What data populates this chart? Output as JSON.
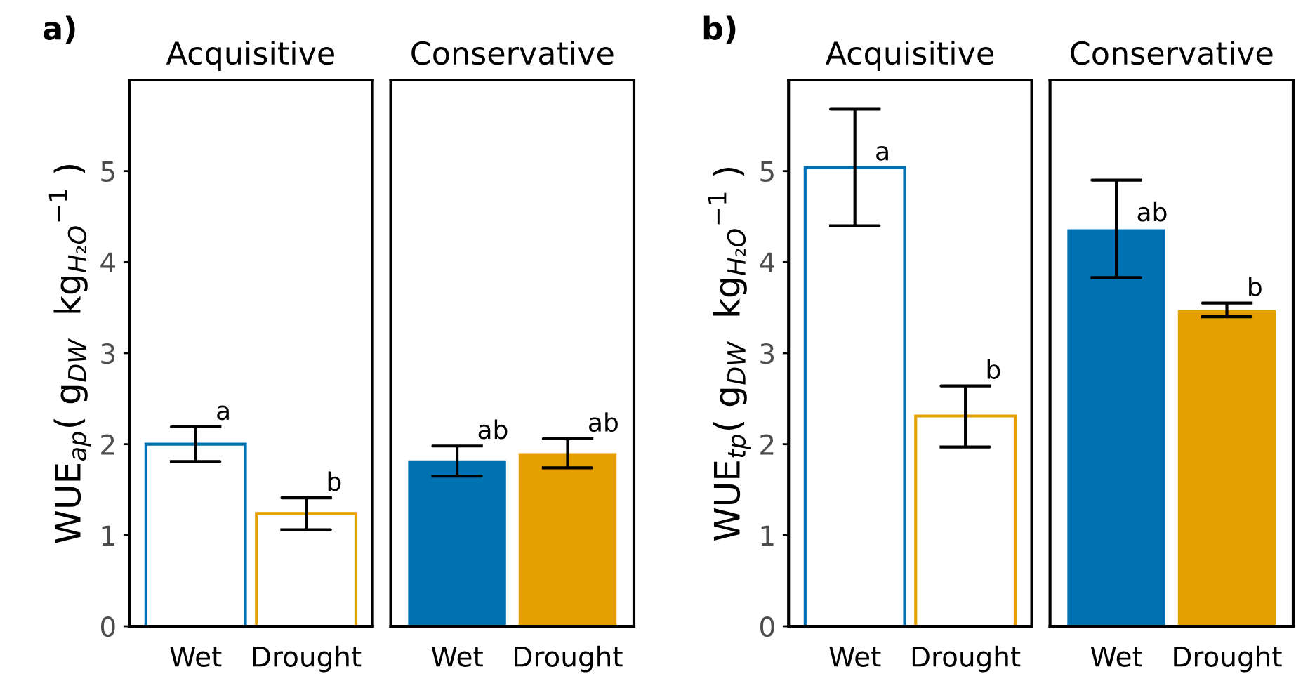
{
  "chart_data": [
    {
      "type": "bar",
      "title": "Acquisitive",
      "ylabel": "WUE$_{ap}$( g$_{DW}$  kg$_{H₂O}$$^{−1}$ )",
      "categories": [
        "Wet",
        "Drought"
      ],
      "values": [
        2.0,
        1.24
      ],
      "colors": [
        "#0072b2",
        "#e69f00"
      ],
      "errors": [
        [
          1.81,
          2.19
        ],
        [
          1.06,
          1.41
        ]
      ],
      "ylim": [
        0,
        6
      ],
      "yticks": [
        0,
        1,
        2,
        3,
        4,
        5
      ],
      "annotations": [
        "a)",
        {
          "text": "a",
          "x": "Wet",
          "y": 2.19
        },
        {
          "text": "b",
          "x": "Drought",
          "y": 1.41
        }
      ]
    },
    {
      "type": "bar",
      "title": "Conservative",
      "categories": [
        "Wet",
        "Drought"
      ],
      "values": [
        1.83,
        1.91
      ],
      "colors": [
        "#0072b2",
        "#e69f00"
      ],
      "errors": [
        [
          1.65,
          1.98
        ],
        [
          1.74,
          2.06
        ]
      ],
      "ylim": [
        0,
        6
      ],
      "yticks": [
        0,
        1,
        2,
        3,
        4,
        5
      ],
      "tick_labels": "x",
      "annotations": [
        {
          "text": "ab",
          "x": "Wet",
          "y": 1.98
        },
        {
          "text": "ab",
          "x": "Drought",
          "y": 2.06
        }
      ]
    },
    {
      "type": "bar",
      "title": "Acquisitive",
      "ylabel": "WUE$_{tp}$( g$_{DW}$  kg$_{H₂O}$$^{−1}$ )",
      "categories": [
        "Wet",
        "Drought"
      ],
      "values": [
        5.04,
        2.31
      ],
      "colors": [
        "#0072b2",
        "#e69f00"
      ],
      "errors": [
        [
          4.4,
          5.68
        ],
        [
          1.97,
          2.64
        ]
      ],
      "ylim": [
        0,
        6
      ],
      "yticks": [
        0,
        1,
        2,
        3,
        4,
        5
      ],
      "annotations": [
        "b)",
        {
          "text": "a",
          "x": "Wet",
          "y": 5.04
        },
        {
          "text": "b",
          "x": "Drought",
          "y": 2.64
        }
      ]
    },
    {
      "type": "bar",
      "title": "Conservative",
      "categories": [
        "Wet",
        "Drought"
      ],
      "values": [
        4.37,
        3.48
      ],
      "colors": [
        "#0072b2",
        "#e69f00"
      ],
      "errors": [
        [
          3.83,
          4.9
        ],
        [
          3.4,
          3.55
        ]
      ],
      "ylim": [
        0,
        6
      ],
      "yticks": [
        0,
        1,
        2,
        3,
        4,
        5
      ],
      "tick_labels": "x",
      "annotations": [
        {
          "text": "ab",
          "x": "Wet",
          "y": 4.37
        },
        {
          "text": "b",
          "x": "Drought",
          "y": 3.55
        }
      ]
    }
  ]
}
